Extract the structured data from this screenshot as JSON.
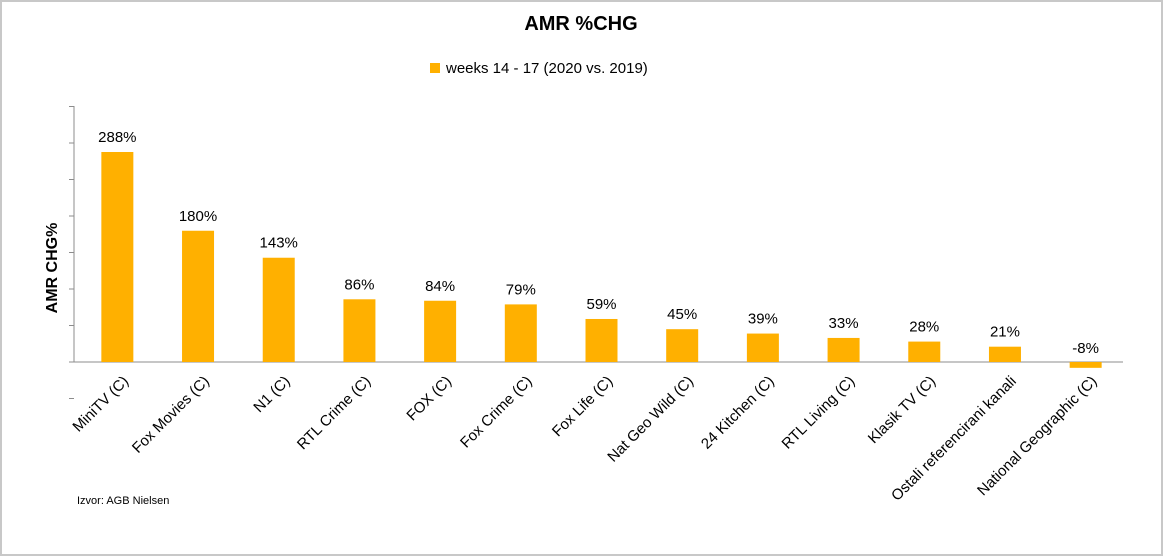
{
  "chart_data": {
    "type": "bar",
    "title": "AMR %CHG",
    "ylabel": "AMR CHG%",
    "xlabel": "",
    "legend": "top-center",
    "grid": false,
    "ylim": [
      -10,
      350
    ],
    "categories": [
      "MiniTV (C)",
      "Fox Movies (C)",
      "N1 (C)",
      "RTL Crime (C)",
      "FOX (C)",
      "Fox Crime (C)",
      "Fox Life (C)",
      "Nat Geo Wild (C)",
      "24 Kitchen (C)",
      "RTL Living (C)",
      "Klasik TV (C)",
      "Ostali referencirani kanali",
      "National Geographic (C)"
    ],
    "series": [
      {
        "name": "weeks 14 - 17 (2020 vs. 2019)",
        "color": "#FFB000",
        "values": [
          288,
          180,
          143,
          86,
          84,
          79,
          59,
          45,
          39,
          33,
          28,
          21,
          -8
        ],
        "labels": [
          "288%",
          "180%",
          "143%",
          "86%",
          "84%",
          "79%",
          "59%",
          "45%",
          "39%",
          "33%",
          "28%",
          "21%",
          "-8%"
        ]
      }
    ]
  },
  "source": "Izvor: AGB Nielsen"
}
